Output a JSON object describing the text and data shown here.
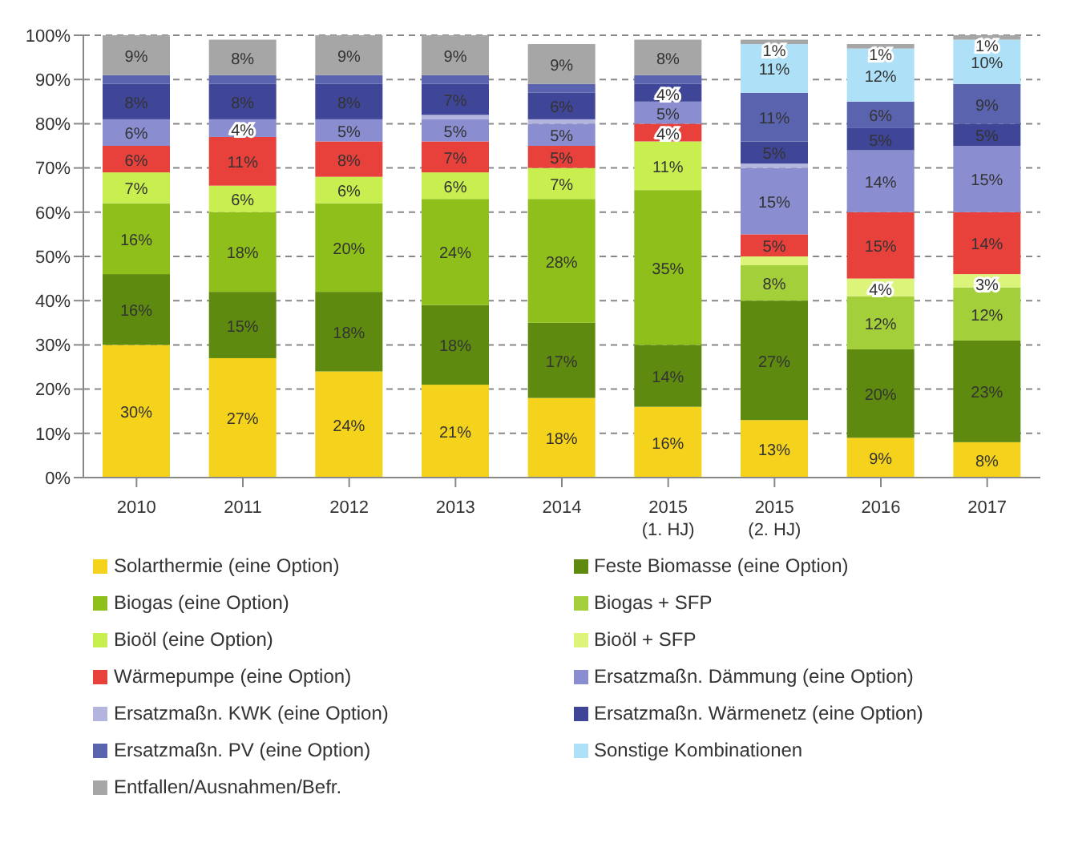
{
  "chart_data": {
    "type": "bar",
    "stacked": true,
    "categories": [
      "2010",
      "2011",
      "2012",
      "2013",
      "2014",
      "2015 (1. HJ)",
      "2015 (2. HJ)",
      "2016",
      "2017"
    ],
    "ylim": [
      0,
      100
    ],
    "yticks": [
      {
        "value": 0,
        "label": "0%"
      },
      {
        "value": 10,
        "label": "10%"
      },
      {
        "value": 20,
        "label": "20%"
      },
      {
        "value": 30,
        "label": "30%"
      },
      {
        "value": 40,
        "label": "40%"
      },
      {
        "value": 50,
        "label": "50%"
      },
      {
        "value": 60,
        "label": "60%"
      },
      {
        "value": 70,
        "label": "70%"
      },
      {
        "value": 80,
        "label": "80%"
      },
      {
        "value": 90,
        "label": "90%"
      },
      {
        "value": 100,
        "label": "100%"
      }
    ],
    "grid": "y",
    "legend": "bottom",
    "series": [
      {
        "name": "Solarthermie (eine Option)",
        "color": "#f5d31c",
        "values": [
          30,
          27,
          24,
          21,
          18,
          16,
          13,
          9,
          8
        ],
        "value_labels": [
          "30%",
          "27%",
          "24%",
          "21%",
          "18%",
          "16%",
          "13%",
          "9%",
          "8%"
        ]
      },
      {
        "name": "Feste Biomasse (eine Option)",
        "color": "#5e8a0f",
        "values": [
          16,
          15,
          18,
          18,
          17,
          14,
          27,
          20,
          23
        ],
        "value_labels": [
          "16%",
          "15%",
          "18%",
          "18%",
          "17%",
          "14%",
          "27%",
          "20%",
          "23%"
        ]
      },
      {
        "name": "Biogas (eine Option)",
        "color": "#8fbf1a",
        "values": [
          16,
          18,
          20,
          24,
          28,
          35,
          null,
          null,
          null
        ],
        "value_labels": [
          "16%",
          "18%",
          "20%",
          "24%",
          "28%",
          "35%",
          null,
          null,
          null
        ]
      },
      {
        "name": "Biogas + SFP",
        "color": "#a3cf3a",
        "values": [
          null,
          null,
          null,
          null,
          null,
          null,
          8,
          12,
          12
        ],
        "value_labels": [
          null,
          null,
          null,
          null,
          null,
          null,
          "8%",
          "12%",
          "12%"
        ]
      },
      {
        "name": "Bioöl (eine Option)",
        "color": "#c9ee4f",
        "values": [
          7,
          6,
          6,
          6,
          7,
          11,
          null,
          null,
          null
        ],
        "value_labels": [
          "7%",
          "6%",
          "6%",
          "6%",
          "7%",
          "11%",
          null,
          null,
          null
        ]
      },
      {
        "name": "Bioöl + SFP",
        "color": "#dcf47a",
        "values": [
          null,
          null,
          null,
          null,
          null,
          null,
          2,
          4,
          3
        ],
        "value_labels": [
          null,
          null,
          null,
          null,
          null,
          null,
          null,
          "4%",
          "3%"
        ]
      },
      {
        "name": "Wärmepumpe (eine Option)",
        "color": "#e8413c",
        "values": [
          6,
          11,
          8,
          7,
          5,
          4,
          5,
          15,
          14
        ],
        "value_labels": [
          "6%",
          "11%",
          "8%",
          "7%",
          "5%",
          "4%",
          "5%",
          "15%",
          "14%"
        ]
      },
      {
        "name": "Ersatzmaßn. Dämmung (eine Option)",
        "color": "#8a8ed0",
        "values": [
          6,
          4,
          5,
          5,
          5,
          5,
          15,
          14,
          15
        ],
        "value_labels": [
          "6%",
          "4%",
          "5%",
          "5%",
          "5%",
          "5%",
          "15%",
          "14%",
          "15%"
        ]
      },
      {
        "name": "Ersatzmaßn. KWK (eine Option)",
        "color": "#b3b5de",
        "values": [
          null,
          null,
          null,
          1,
          1,
          null,
          1,
          null,
          null
        ],
        "value_labels": [
          null,
          null,
          null,
          null,
          null,
          null,
          null,
          null,
          null
        ]
      },
      {
        "name": "Ersatzmaßn. Wärmenetz (eine Option)",
        "color": "#3f4697",
        "values": [
          8,
          8,
          8,
          7,
          6,
          4,
          5,
          5,
          5
        ],
        "value_labels": [
          "8%",
          "8%",
          "8%",
          "7%",
          "6%",
          "4%",
          "5%",
          "5%",
          "5%"
        ]
      },
      {
        "name": "Ersatzmaßn. PV (eine Option)",
        "color": "#5a64ae",
        "values": [
          2,
          2,
          2,
          2,
          2,
          2,
          11,
          6,
          9
        ],
        "value_labels": [
          null,
          null,
          null,
          null,
          null,
          null,
          "11%",
          "6%",
          "9%"
        ]
      },
      {
        "name": "Sonstige Kombinationen",
        "color": "#aee0f7",
        "values": [
          null,
          null,
          null,
          null,
          null,
          null,
          11,
          12,
          10
        ],
        "value_labels": [
          null,
          null,
          null,
          null,
          null,
          null,
          "11%",
          "12%",
          "10%"
        ]
      },
      {
        "name": "Entfallen/Ausnahmen/Befr.",
        "color": "#a6a6a6",
        "values": [
          9,
          8,
          9,
          9,
          9,
          8,
          1,
          1,
          1
        ],
        "value_labels": [
          "9%",
          "8%",
          "9%",
          "9%",
          "9%",
          "8%",
          "1%",
          "1%",
          "1%"
        ]
      }
    ]
  }
}
